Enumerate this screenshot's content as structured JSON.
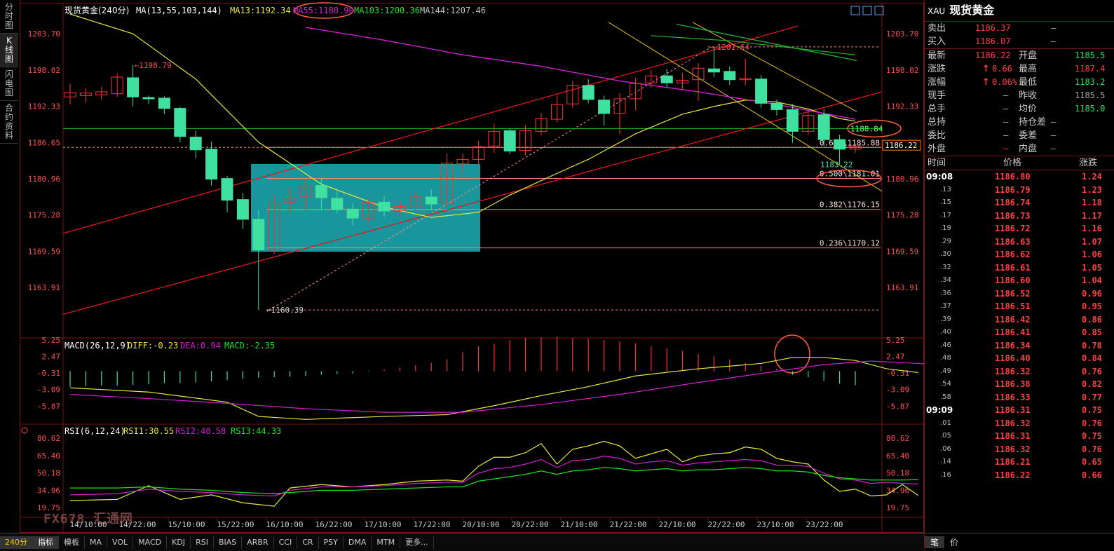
{
  "side_tabs": [
    "分时图",
    "K线图",
    "闪电图",
    "合约资料"
  ],
  "side_active": 1,
  "period_label": "240分",
  "bottom_tabs": [
    "指标",
    "模板",
    "MA",
    "VOL",
    "MACD",
    "KDJ",
    "RSI",
    "BIAS",
    "ARBR",
    "CCI",
    "CR",
    "PSY",
    "DMA",
    "MTM",
    "更多..."
  ],
  "header": {
    "name": "现货黄金",
    "period": "(240分)",
    "ma_label": "MA(13,55,103,144)",
    "ma13": "MA13:1192.34",
    "ma55": "MA55:1188.90",
    "ma103": "MA103:1200.36",
    "ma144": "MA144:1207.46"
  },
  "macd_header": {
    "name": "MACD(26,12,9)",
    "diff": "DIFF:-0.23",
    "dea": "DEA:0.94",
    "macd": "MACD:-2.35"
  },
  "rsi_header": {
    "name": "RSI(6,12,24)",
    "rsi1": "RSI1:30.55",
    "rsi2": "RSI2:40.58",
    "rsi3": "RSI3:44.33"
  },
  "colors": {
    "up": "#ff3030",
    "down": "#40e0a0",
    "ma13": "#e8e840",
    "ma55": "#d020d0",
    "ma103": "#20c020",
    "ma144": "#c0c0c0",
    "box": "#1aa3a8",
    "channel": "#e01818",
    "fib": "#ff8080",
    "annot": "#ff6040"
  },
  "chart_data": {
    "type": "candlestick",
    "x_labels": [
      "14/10:00",
      "14/22:00",
      "15/10:00",
      "15/22:00",
      "16/10:00",
      "16/22:00",
      "17/10:00",
      "17/22:00",
      "20/10:00",
      "20/22:00",
      "21/10:00",
      "21/22:00",
      "22/10:00",
      "22/22:00",
      "23/10:00",
      "23/22:00"
    ],
    "price_ticks": [
      1203.7,
      1198.02,
      1192.33,
      1186.65,
      1180.96,
      1175.28,
      1169.59,
      1163.91
    ],
    "price_ylim": [
      1158.2,
      1205.7
    ],
    "candles": [
      {
        "o": 1193.8,
        "c": 1194.5,
        "h": 1195.9,
        "l": 1192.6
      },
      {
        "o": 1194.0,
        "c": 1194.4,
        "h": 1195.2,
        "l": 1192.9
      },
      {
        "o": 1194.1,
        "c": 1194.6,
        "h": 1195.4,
        "l": 1193.4
      },
      {
        "o": 1194.3,
        "c": 1196.9,
        "h": 1197.5,
        "l": 1193.8
      },
      {
        "o": 1196.8,
        "c": 1193.8,
        "h": 1198.79,
        "l": 1192.3
      },
      {
        "o": 1193.7,
        "c": 1193.5,
        "h": 1194.0,
        "l": 1192.7
      },
      {
        "o": 1193.6,
        "c": 1192.0,
        "h": 1193.9,
        "l": 1191.1
      },
      {
        "o": 1192.0,
        "c": 1187.6,
        "h": 1192.3,
        "l": 1186.7
      },
      {
        "o": 1187.5,
        "c": 1185.5,
        "h": 1188.5,
        "l": 1184.2
      },
      {
        "o": 1185.6,
        "c": 1180.9,
        "h": 1186.8,
        "l": 1179.9
      },
      {
        "o": 1181.0,
        "c": 1177.6,
        "h": 1181.4,
        "l": 1175.7
      },
      {
        "o": 1177.7,
        "c": 1174.6,
        "h": 1178.7,
        "l": 1173.1
      },
      {
        "o": 1174.6,
        "c": 1169.8,
        "h": 1176.0,
        "l": 1160.39
      },
      {
        "o": 1169.8,
        "c": 1177.4,
        "h": 1178.4,
        "l": 1169.2
      },
      {
        "o": 1177.3,
        "c": 1178.0,
        "h": 1179.6,
        "l": 1175.4
      },
      {
        "o": 1178.1,
        "c": 1179.9,
        "h": 1180.9,
        "l": 1176.1
      },
      {
        "o": 1179.9,
        "c": 1178.0,
        "h": 1181.0,
        "l": 1176.0
      },
      {
        "o": 1177.9,
        "c": 1176.1,
        "h": 1179.0,
        "l": 1175.5
      },
      {
        "o": 1176.2,
        "c": 1174.8,
        "h": 1177.1,
        "l": 1173.6
      },
      {
        "o": 1174.8,
        "c": 1177.3,
        "h": 1177.9,
        "l": 1173.9
      },
      {
        "o": 1177.3,
        "c": 1175.9,
        "h": 1178.3,
        "l": 1175.0
      },
      {
        "o": 1176.0,
        "c": 1176.6,
        "h": 1177.5,
        "l": 1174.9
      },
      {
        "o": 1176.5,
        "c": 1178.1,
        "h": 1178.9,
        "l": 1175.9
      },
      {
        "o": 1178.1,
        "c": 1177.0,
        "h": 1179.3,
        "l": 1176.0
      },
      {
        "o": 1177.1,
        "c": 1183.4,
        "h": 1184.9,
        "l": 1176.5
      },
      {
        "o": 1183.3,
        "c": 1184.0,
        "h": 1184.9,
        "l": 1181.6
      },
      {
        "o": 1184.0,
        "c": 1186.0,
        "h": 1186.9,
        "l": 1183.0
      },
      {
        "o": 1186.1,
        "c": 1188.4,
        "h": 1189.6,
        "l": 1185.0
      },
      {
        "o": 1188.5,
        "c": 1185.3,
        "h": 1188.9,
        "l": 1184.8
      },
      {
        "o": 1185.4,
        "c": 1188.5,
        "h": 1189.4,
        "l": 1184.6
      },
      {
        "o": 1188.4,
        "c": 1190.4,
        "h": 1191.3,
        "l": 1187.8
      },
      {
        "o": 1190.3,
        "c": 1192.6,
        "h": 1194.1,
        "l": 1189.8
      },
      {
        "o": 1192.7,
        "c": 1195.6,
        "h": 1196.3,
        "l": 1192.1
      },
      {
        "o": 1195.6,
        "c": 1193.4,
        "h": 1196.6,
        "l": 1192.8
      },
      {
        "o": 1193.3,
        "c": 1191.2,
        "h": 1194.0,
        "l": 1189.3
      },
      {
        "o": 1191.2,
        "c": 1193.5,
        "h": 1194.4,
        "l": 1188.0
      },
      {
        "o": 1193.5,
        "c": 1195.9,
        "h": 1196.8,
        "l": 1191.7
      },
      {
        "o": 1196.0,
        "c": 1197.1,
        "h": 1198.0,
        "l": 1195.2
      },
      {
        "o": 1197.1,
        "c": 1196.0,
        "h": 1198.2,
        "l": 1195.3
      },
      {
        "o": 1196.0,
        "c": 1196.4,
        "h": 1197.6,
        "l": 1195.0
      },
      {
        "o": 1196.5,
        "c": 1198.3,
        "h": 1199.1,
        "l": 1193.2
      },
      {
        "o": 1198.2,
        "c": 1197.7,
        "h": 1201.64,
        "l": 1196.9
      },
      {
        "o": 1197.8,
        "c": 1196.5,
        "h": 1198.6,
        "l": 1195.7
      },
      {
        "o": 1196.5,
        "c": 1196.7,
        "h": 1199.8,
        "l": 1195.6
      },
      {
        "o": 1196.6,
        "c": 1192.8,
        "h": 1197.2,
        "l": 1192.1
      },
      {
        "o": 1192.8,
        "c": 1191.8,
        "h": 1193.4,
        "l": 1190.9
      },
      {
        "o": 1191.8,
        "c": 1188.4,
        "h": 1192.7,
        "l": 1186.6
      },
      {
        "o": 1188.4,
        "c": 1190.9,
        "h": 1191.7,
        "l": 1187.9
      },
      {
        "o": 1191.0,
        "c": 1187.1,
        "h": 1191.9,
        "l": 1186.1
      },
      {
        "o": 1187.1,
        "c": 1185.6,
        "h": 1187.9,
        "l": 1183.22
      },
      {
        "o": 1185.6,
        "c": 1186.1,
        "h": 1186.4,
        "l": 1185.0
      }
    ],
    "ma13": [
      [
        0,
        1206.8
      ],
      [
        4,
        1203.7
      ],
      [
        8,
        1196.6
      ],
      [
        12,
        1186.7
      ],
      [
        16,
        1180.1
      ],
      [
        20,
        1176.5
      ],
      [
        23,
        1174.9
      ],
      [
        26,
        1175.7
      ],
      [
        28,
        1178.4
      ],
      [
        31,
        1181.8
      ],
      [
        33,
        1184.0
      ],
      [
        36,
        1188.0
      ],
      [
        39,
        1191.1
      ],
      [
        41,
        1192.3
      ],
      [
        43,
        1193.3
      ],
      [
        45,
        1193.0
      ],
      [
        47,
        1191.9
      ],
      [
        49,
        1190.4
      ],
      [
        50,
        1190.0
      ]
    ],
    "ma55": [
      [
        15,
        1204.7
      ],
      [
        20,
        1202.7
      ],
      [
        25,
        1200.4
      ],
      [
        30,
        1198.6
      ],
      [
        35,
        1196.3
      ],
      [
        40,
        1194.6
      ],
      [
        45,
        1192.6
      ],
      [
        50,
        1190.3
      ]
    ],
    "ma103": [
      [
        37,
        1203.4
      ],
      [
        42,
        1202.6
      ],
      [
        47,
        1201.2
      ],
      [
        50,
        1200.4
      ]
    ],
    "ma144": [],
    "ma_values": {
      "ma13": 1192.34,
      "ma55": 1188.9,
      "ma103": 1200.36,
      "ma144": 1207.46
    },
    "labels": {
      "high": "1198.79",
      "peak": "1201.64",
      "low": "1160.39",
      "recent_low": "1183.22",
      "last_price": "1186.22",
      "circled_ma": "1188.84"
    },
    "fib_levels": [
      {
        "label": "0.618\\1185.88",
        "price": 1185.88
      },
      {
        "label": "0.500\\1181.01",
        "price": 1181.01
      },
      {
        "label": "0.382\\1176.15",
        "price": 1176.15
      },
      {
        "label": "0.236\\1170.12",
        "price": 1170.12
      }
    ],
    "macd_ticks": [
      5.25,
      2.47,
      -0.31,
      -3.09,
      -5.87
    ],
    "macd_ylim": [
      -8.3,
      7.0
    ],
    "macd_hist": [
      -2.6,
      -2.5,
      -2.4,
      -2.4,
      -2.3,
      -2.2,
      -2.0,
      -2.0,
      -1.9,
      -1.7,
      -1.5,
      -1.3,
      -1.1,
      -1.0,
      -0.9,
      -0.8,
      -0.6,
      -0.5,
      -0.4,
      0.1,
      0.3,
      0.6,
      1.0,
      1.4,
      2.0,
      3.2,
      4.2,
      4.6,
      5.2,
      5.6,
      5.7,
      5.8,
      5.6,
      5.5,
      5.2,
      5.0,
      4.7,
      4.2,
      3.8,
      3.4,
      2.9,
      2.5,
      2.0,
      1.4,
      0.9,
      0.4,
      -0.6,
      -1.0,
      -1.6,
      -2.1,
      -2.35
    ],
    "macd_diff": [
      [
        0,
        -2.8
      ],
      [
        5,
        -3.5
      ],
      [
        10,
        -5.2
      ],
      [
        12,
        -7.6
      ],
      [
        15,
        -8.1
      ],
      [
        20,
        -7.6
      ],
      [
        24,
        -7.3
      ],
      [
        27,
        -5.8
      ],
      [
        30,
        -4.1
      ],
      [
        33,
        -2.6
      ],
      [
        36,
        -0.8
      ],
      [
        40,
        0.4
      ],
      [
        44,
        1.3
      ],
      [
        46,
        2.3
      ],
      [
        48,
        2.3
      ],
      [
        50,
        1.8
      ],
      [
        52,
        0.4
      ],
      [
        54,
        -0.23
      ]
    ],
    "macd_dea": [
      [
        0,
        -3.9
      ],
      [
        5,
        -4.6
      ],
      [
        10,
        -5.4
      ],
      [
        15,
        -6.3
      ],
      [
        20,
        -6.9
      ],
      [
        25,
        -6.9
      ],
      [
        30,
        -5.6
      ],
      [
        35,
        -3.9
      ],
      [
        40,
        -1.9
      ],
      [
        45,
        0.0
      ],
      [
        48,
        1.1
      ],
      [
        51,
        1.7
      ],
      [
        54,
        1.3
      ],
      [
        56,
        0.94
      ]
    ],
    "rsi_ticks": [
      80.62,
      65.4,
      50.18,
      34.96,
      19.75
    ],
    "rsi_ylim": [
      10,
      90
    ],
    "rsi1": [
      [
        0,
        26
      ],
      [
        3,
        27
      ],
      [
        5,
        39
      ],
      [
        7,
        27
      ],
      [
        9,
        31
      ],
      [
        11,
        24
      ],
      [
        13,
        21
      ],
      [
        14,
        37
      ],
      [
        16,
        40
      ],
      [
        18,
        38
      ],
      [
        20,
        40
      ],
      [
        22,
        43
      ],
      [
        24,
        44
      ],
      [
        25,
        43
      ],
      [
        26,
        56
      ],
      [
        27,
        64
      ],
      [
        28,
        64
      ],
      [
        29,
        68
      ],
      [
        30,
        76
      ],
      [
        31,
        58
      ],
      [
        32,
        71
      ],
      [
        33,
        74
      ],
      [
        34,
        78
      ],
      [
        35,
        74
      ],
      [
        36,
        63
      ],
      [
        37,
        67
      ],
      [
        38,
        71
      ],
      [
        39,
        60
      ],
      [
        40,
        65
      ],
      [
        41,
        67
      ],
      [
        42,
        68
      ],
      [
        43,
        73
      ],
      [
        44,
        71
      ],
      [
        45,
        63
      ],
      [
        46,
        60
      ],
      [
        47,
        58
      ],
      [
        48,
        44
      ],
      [
        49,
        34
      ],
      [
        50,
        36
      ],
      [
        51,
        30
      ],
      [
        52,
        31
      ],
      [
        53,
        40
      ],
      [
        54,
        30.55
      ]
    ],
    "rsi2": [
      [
        0,
        31
      ],
      [
        3,
        32
      ],
      [
        5,
        36
      ],
      [
        7,
        34
      ],
      [
        9,
        33
      ],
      [
        11,
        31
      ],
      [
        13,
        30
      ],
      [
        14,
        35
      ],
      [
        16,
        38
      ],
      [
        18,
        38
      ],
      [
        20,
        39
      ],
      [
        22,
        41
      ],
      [
        24,
        42
      ],
      [
        25,
        42
      ],
      [
        26,
        50
      ],
      [
        27,
        54
      ],
      [
        28,
        55
      ],
      [
        29,
        58
      ],
      [
        30,
        62
      ],
      [
        31,
        55
      ],
      [
        32,
        61
      ],
      [
        33,
        62
      ],
      [
        34,
        65
      ],
      [
        35,
        63
      ],
      [
        36,
        58
      ],
      [
        37,
        60
      ],
      [
        38,
        61
      ],
      [
        39,
        57
      ],
      [
        40,
        59
      ],
      [
        41,
        60
      ],
      [
        42,
        61
      ],
      [
        43,
        62
      ],
      [
        44,
        61
      ],
      [
        45,
        57
      ],
      [
        46,
        57
      ],
      [
        47,
        56
      ],
      [
        48,
        50
      ],
      [
        49,
        45
      ],
      [
        50,
        44
      ],
      [
        51,
        41
      ],
      [
        52,
        42
      ],
      [
        53,
        41
      ],
      [
        54,
        40.58
      ]
    ],
    "rsi3": [
      [
        0,
        37
      ],
      [
        3,
        37
      ],
      [
        5,
        38
      ],
      [
        7,
        36
      ],
      [
        9,
        35
      ],
      [
        11,
        33
      ],
      [
        13,
        32
      ],
      [
        14,
        33
      ],
      [
        16,
        35
      ],
      [
        18,
        35
      ],
      [
        20,
        36
      ],
      [
        22,
        37
      ],
      [
        24,
        38
      ],
      [
        25,
        38
      ],
      [
        26,
        43
      ],
      [
        27,
        45
      ],
      [
        28,
        47
      ],
      [
        29,
        49
      ],
      [
        30,
        52
      ],
      [
        31,
        49
      ],
      [
        32,
        52
      ],
      [
        33,
        53
      ],
      [
        34,
        55
      ],
      [
        35,
        54
      ],
      [
        36,
        52
      ],
      [
        37,
        53
      ],
      [
        38,
        54
      ],
      [
        39,
        52
      ],
      [
        40,
        53
      ],
      [
        41,
        53
      ],
      [
        42,
        54
      ],
      [
        43,
        55
      ],
      [
        44,
        54
      ],
      [
        45,
        52
      ],
      [
        46,
        52
      ],
      [
        47,
        51
      ],
      [
        48,
        48
      ],
      [
        49,
        46
      ],
      [
        50,
        45
      ],
      [
        51,
        44
      ],
      [
        52,
        44
      ],
      [
        53,
        44
      ],
      [
        54,
        44.33
      ]
    ]
  },
  "quote": {
    "symbol": "XAU",
    "name": "现货黄金",
    "rows": [
      {
        "k1": "卖出",
        "v1": "1186.37",
        "c1": "red",
        "k2": "",
        "v2": "—",
        "c2": "gray"
      },
      {
        "k1": "买入",
        "v1": "1186.07",
        "c1": "red",
        "k2": "",
        "v2": "—",
        "c2": "gray"
      },
      {
        "k1": "最新",
        "v1": "1186.22",
        "c1": "red",
        "k2": "开盘",
        "v2": "1185.5",
        "c2": "green"
      },
      {
        "k1": "涨跌",
        "v1": "0.66",
        "c1": "red",
        "k2": "最高",
        "v2": "1187.4",
        "c2": "red",
        "arrow": "↑"
      },
      {
        "k1": "涨幅",
        "v1": "0.06%",
        "c1": "red",
        "k2": "最低",
        "v2": "1183.2",
        "c2": "green",
        "arrow": "↑"
      },
      {
        "k1": "现手",
        "v1": "—",
        "c1": "gray",
        "k2": "昨收",
        "v2": "1185.5",
        "c2": "gray"
      },
      {
        "k1": "总手",
        "v1": "—",
        "c1": "gray",
        "k2": "均价",
        "v2": "1185.0",
        "c2": "green"
      },
      {
        "k1": "总持",
        "v1": "—",
        "c1": "gray",
        "k2": "持仓差",
        "v2": "—",
        "c2": "gray"
      },
      {
        "k1": "委比",
        "v1": "—",
        "c1": "gray",
        "k2": "委差",
        "v2": "—",
        "c2": "gray"
      },
      {
        "k1": "外盘",
        "v1": "—",
        "c1": "red",
        "k2": "内盘",
        "v2": "—",
        "c2": "gray"
      }
    ],
    "tick_headers": [
      "时间",
      "价格",
      "涨跌"
    ],
    "ticks": [
      {
        "t": "09:08",
        "p": "1186.80",
        "d": "1.24"
      },
      {
        "t": ".13",
        "p": "1186.79",
        "d": "1.23"
      },
      {
        "t": ".15",
        "p": "1186.74",
        "d": "1.18"
      },
      {
        "t": ".17",
        "p": "1186.73",
        "d": "1.17"
      },
      {
        "t": ".19",
        "p": "1186.72",
        "d": "1.16"
      },
      {
        "t": ".29",
        "p": "1186.63",
        "d": "1.07"
      },
      {
        "t": ".30",
        "p": "1186.62",
        "d": "1.06"
      },
      {
        "t": ".32",
        "p": "1186.61",
        "d": "1.05"
      },
      {
        "t": ".34",
        "p": "1186.60",
        "d": "1.04"
      },
      {
        "t": ".36",
        "p": "1186.52",
        "d": "0.96"
      },
      {
        "t": ".37",
        "p": "1186.51",
        "d": "0.95"
      },
      {
        "t": ".39",
        "p": "1186.42",
        "d": "0.86"
      },
      {
        "t": ".40",
        "p": "1186.41",
        "d": "0.85"
      },
      {
        "t": ".46",
        "p": "1186.34",
        "d": "0.78"
      },
      {
        "t": ".48",
        "p": "1186.40",
        "d": "0.84"
      },
      {
        "t": ".49",
        "p": "1186.32",
        "d": "0.76"
      },
      {
        "t": ".54",
        "p": "1186.38",
        "d": "0.82"
      },
      {
        "t": ".58",
        "p": "1186.33",
        "d": "0.77"
      },
      {
        "t": "09:09",
        "p": "1186.31",
        "d": "0.75"
      },
      {
        "t": ".01",
        "p": "1186.32",
        "d": "0.76"
      },
      {
        "t": ".05",
        "p": "1186.31",
        "d": "0.75"
      },
      {
        "t": ".06",
        "p": "1186.32",
        "d": "0.76"
      },
      {
        "t": ".14",
        "p": "1186.21",
        "d": "0.65"
      },
      {
        "t": ".16",
        "p": "1186.22",
        "d": "0.66"
      }
    ],
    "foot_tabs": [
      "笔",
      "价"
    ]
  },
  "watermark": "FX678 汇通网"
}
